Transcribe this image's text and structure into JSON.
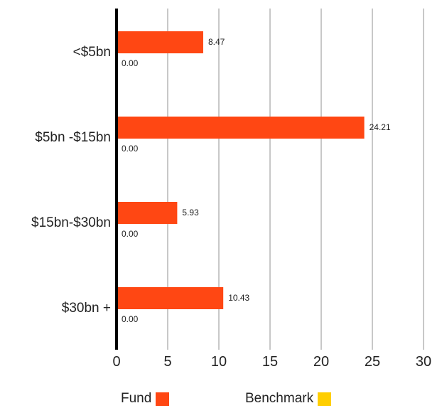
{
  "chart_data": {
    "type": "bar",
    "orientation": "horizontal",
    "categories": [
      "<$5bn",
      "$5bn -$15bn",
      "$15bn-$30bn",
      "$30bn +"
    ],
    "series": [
      {
        "name": "Fund",
        "values": [
          8.47,
          24.21,
          5.93,
          10.43
        ],
        "labels": [
          "8.47",
          "24.21",
          "5.93",
          "10.43"
        ],
        "color": "#FF4713"
      },
      {
        "name": "Benchmark",
        "values": [
          0,
          0,
          0,
          0
        ],
        "labels": [
          "0.00",
          "0.00",
          "0.00",
          "0.00"
        ],
        "color": "#FFCE00"
      }
    ],
    "xlim": [
      0,
      30
    ],
    "xticks": [
      "0",
      "5",
      "10",
      "15",
      "20",
      "25",
      "30"
    ],
    "grid": true,
    "legend_position": "bottom",
    "gridline_color": "#C8C8C8",
    "axis_color": "#000000"
  },
  "legend": {
    "fund_label": "Fund",
    "benchmark_label": "Benchmark",
    "fund_color": "#FF4713",
    "benchmark_color": "#FFCE00"
  }
}
